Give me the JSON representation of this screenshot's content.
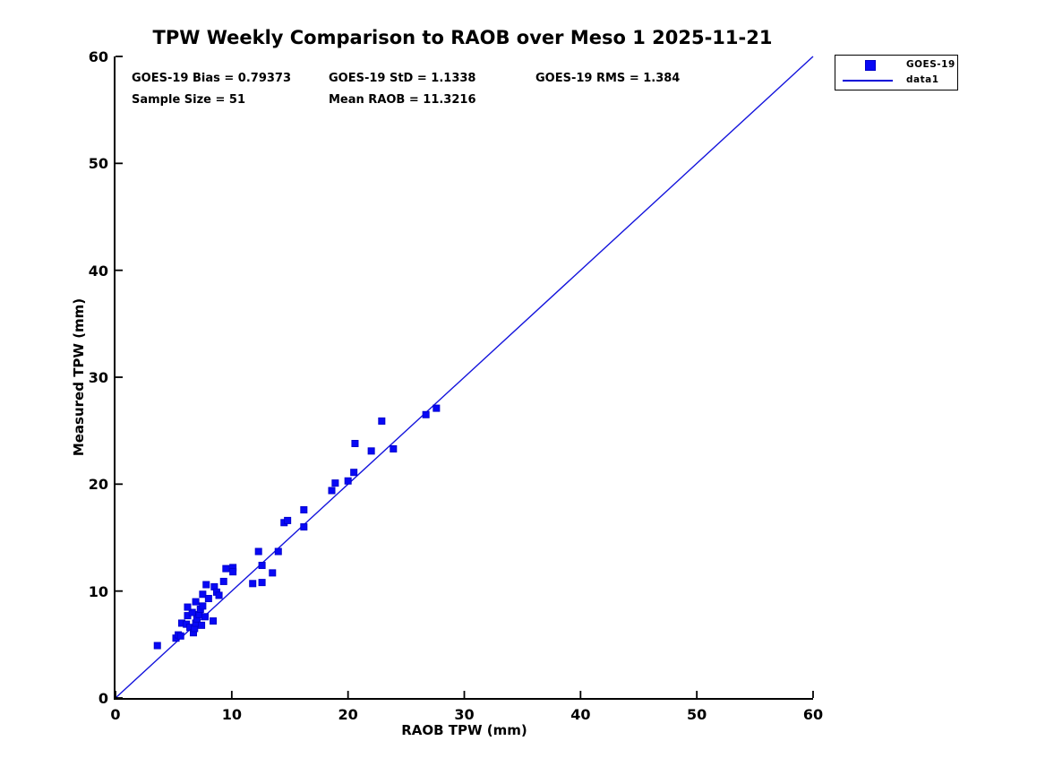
{
  "title": "TPW Weekly Comparison to RAOB over Meso 1 2025-11-21",
  "stats": {
    "bias": "GOES-19 Bias = 0.79373",
    "std": "GOES-19 StD = 1.1338",
    "rms": "GOES-19 RMS = 1.384",
    "sample_size": "Sample Size = 51",
    "mean_raob": "Mean RAOB = 11.3216"
  },
  "legend": {
    "entries": [
      {
        "label": "GOES-19",
        "symbol": "square-marker"
      },
      {
        "label": "data1",
        "symbol": "line"
      }
    ]
  },
  "colors": {
    "marker_fill": "#0808f5",
    "marker_edge": "#0000c8",
    "line": "#1414dc",
    "axis": "#000000",
    "text": "#000000",
    "background": "#ffffff"
  },
  "chart_data": {
    "type": "scatter",
    "title": "TPW Weekly Comparison to RAOB over Meso 1 2025-11-21",
    "xlabel": "RAOB TPW (mm)",
    "ylabel": "Measured TPW (mm)",
    "xlim": [
      0,
      60
    ],
    "ylim": [
      0,
      60
    ],
    "xticks": [
      0,
      10,
      20,
      30,
      40,
      50,
      60
    ],
    "yticks": [
      0,
      10,
      20,
      30,
      40,
      50,
      60
    ],
    "grid": false,
    "legend_position": "outside-top-right",
    "annotations": [
      "GOES-19 Bias = 0.79373",
      "GOES-19 StD = 1.1338",
      "GOES-19 RMS = 1.384",
      "Sample Size = 51",
      "Mean RAOB = 11.3216"
    ],
    "series": [
      {
        "name": "GOES-19",
        "type": "scatter",
        "marker": "square",
        "color": "#0808f5",
        "points": [
          [
            3.6,
            4.9
          ],
          [
            5.2,
            5.6
          ],
          [
            5.4,
            5.9
          ],
          [
            5.6,
            5.8
          ],
          [
            5.7,
            7.0
          ],
          [
            6.1,
            6.9
          ],
          [
            6.4,
            6.6
          ],
          [
            6.7,
            6.1
          ],
          [
            6.8,
            6.5
          ],
          [
            6.9,
            7.0
          ],
          [
            7.0,
            7.4
          ],
          [
            7.4,
            6.8
          ],
          [
            8.4,
            7.2
          ],
          [
            6.2,
            7.7
          ],
          [
            6.6,
            8.0
          ],
          [
            7.2,
            7.8
          ],
          [
            7.7,
            7.6
          ],
          [
            6.2,
            8.5
          ],
          [
            6.9,
            9.0
          ],
          [
            7.3,
            8.3
          ],
          [
            7.5,
            8.6
          ],
          [
            7.5,
            9.7
          ],
          [
            7.8,
            10.6
          ],
          [
            8.0,
            9.3
          ],
          [
            8.5,
            10.4
          ],
          [
            8.7,
            9.9
          ],
          [
            9.3,
            10.9
          ],
          [
            8.9,
            9.6
          ],
          [
            9.5,
            12.1
          ],
          [
            10.1,
            12.2
          ],
          [
            10.1,
            11.8
          ],
          [
            11.8,
            10.7
          ],
          [
            12.6,
            10.8
          ],
          [
            12.3,
            13.7
          ],
          [
            12.6,
            12.4
          ],
          [
            13.5,
            11.7
          ],
          [
            14.0,
            13.7
          ],
          [
            14.5,
            16.4
          ],
          [
            14.8,
            16.6
          ],
          [
            16.2,
            16.0
          ],
          [
            16.2,
            17.6
          ],
          [
            18.6,
            19.4
          ],
          [
            18.9,
            20.1
          ],
          [
            20.0,
            20.3
          ],
          [
            20.5,
            21.1
          ],
          [
            20.6,
            23.8
          ],
          [
            22.0,
            23.1
          ],
          [
            22.9,
            25.9
          ],
          [
            23.9,
            23.3
          ],
          [
            26.7,
            26.5
          ],
          [
            27.6,
            27.1
          ]
        ]
      },
      {
        "name": "data1",
        "type": "line",
        "color": "#1414dc",
        "points": [
          [
            0,
            0
          ],
          [
            60,
            60
          ]
        ]
      }
    ]
  }
}
